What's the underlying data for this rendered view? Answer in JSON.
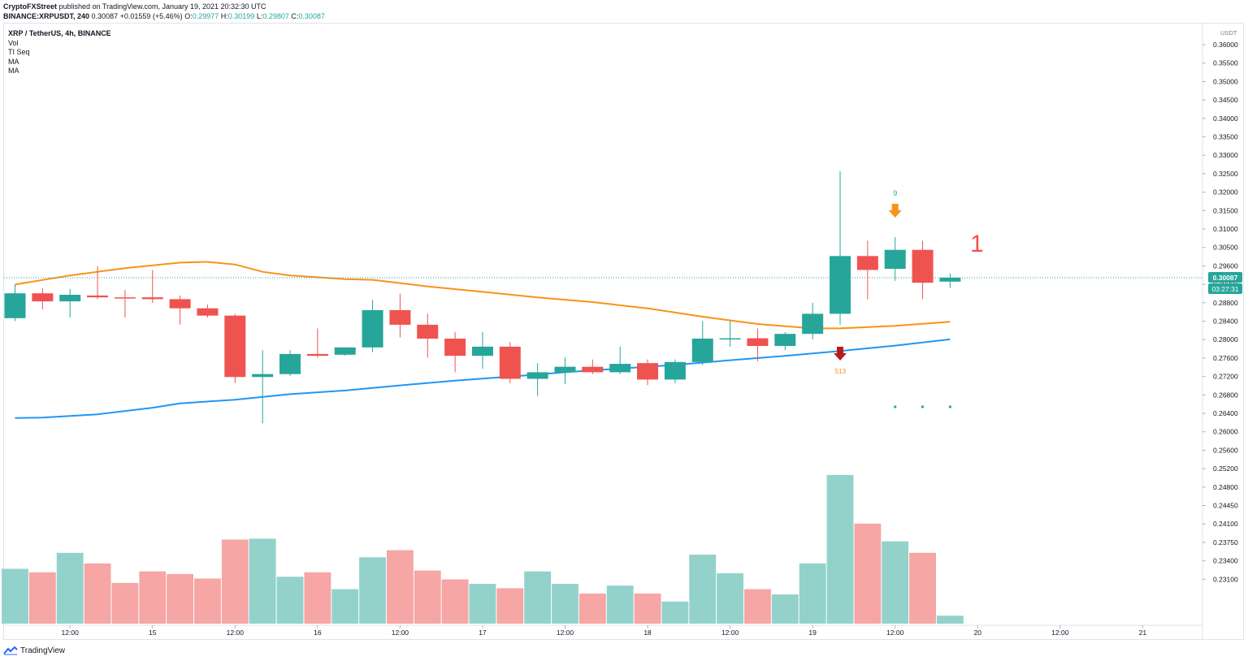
{
  "header": {
    "publisher": "CryptoFXStreet",
    "published_text": "published on TradingView.com, January 19, 2021 20:32:30 UTC",
    "symbol": "BINANCE:XRPUSDT, 240",
    "price": "0.30087",
    "change": "+0.01559 (+5.46%)",
    "o_label": "O:",
    "o": "0.29977",
    "h_label": "H:",
    "h": "0.30199",
    "l_label": "L:",
    "l": "0.29807",
    "c_label": "C:",
    "c": "0.30087"
  },
  "legend": {
    "title": "XRP / TetherUS, 4h, BINANCE",
    "items": [
      "Vol",
      "TI Seq",
      "MA",
      "MA"
    ]
  },
  "footer": {
    "brand": "TradingView"
  },
  "colors": {
    "up": "#26a69a",
    "down": "#ef5350",
    "vol_up": "#93d2cb",
    "vol_down": "#f5a6a5",
    "ma_orange": "#f7931a",
    "ma_blue": "#2196f3",
    "seq_green": "#26a69a",
    "arrow_orange": "#f7931a",
    "arrow_red": "#b71c1c"
  },
  "chart_data": {
    "type": "candlestick",
    "y_axis_unit": "USDT",
    "y_ticks": [
      "0.36000",
      "0.35500",
      "0.35000",
      "0.34500",
      "0.34000",
      "0.33500",
      "0.33000",
      "0.32500",
      "0.32000",
      "0.31500",
      "0.31000",
      "0.30500",
      "0.29600",
      "0.29200",
      "0.28800",
      "0.28400",
      "0.28000",
      "0.27600",
      "0.27200",
      "0.26800",
      "0.26400",
      "0.26000",
      "0.25600",
      "0.25200",
      "0.24800",
      "0.24450",
      "0.24100",
      "0.23750",
      "0.23400",
      "0.23100"
    ],
    "x_ticks": [
      {
        "label": "12:00",
        "bar": 2
      },
      {
        "label": "15",
        "bar": 5
      },
      {
        "label": "12:00",
        "bar": 8
      },
      {
        "label": "16",
        "bar": 11
      },
      {
        "label": "12:00",
        "bar": 14
      },
      {
        "label": "17",
        "bar": 17
      },
      {
        "label": "12:00",
        "bar": 20
      },
      {
        "label": "18",
        "bar": 23
      },
      {
        "label": "12:00",
        "bar": 26
      },
      {
        "label": "19",
        "bar": 29
      },
      {
        "label": "12:00",
        "bar": 32
      },
      {
        "label": "20",
        "bar": 35
      },
      {
        "label": "12:00",
        "bar": 38
      },
      {
        "label": "21",
        "bar": 41
      }
    ],
    "last_price_label": "0.30087",
    "countdown_label": "03:27:31",
    "candles": [
      {
        "o": 0.2898,
        "h": 0.299,
        "l": 0.289,
        "c": 0.2966
      },
      {
        "o": 0.2966,
        "h": 0.298,
        "l": 0.2922,
        "c": 0.2944
      },
      {
        "o": 0.2944,
        "h": 0.2978,
        "l": 0.29,
        "c": 0.2962
      },
      {
        "o": 0.296,
        "h": 0.304,
        "l": 0.295,
        "c": 0.2955
      },
      {
        "o": 0.2955,
        "h": 0.2975,
        "l": 0.29,
        "c": 0.2953
      },
      {
        "o": 0.2955,
        "h": 0.303,
        "l": 0.294,
        "c": 0.295
      },
      {
        "o": 0.295,
        "h": 0.296,
        "l": 0.288,
        "c": 0.2925
      },
      {
        "o": 0.2925,
        "h": 0.2935,
        "l": 0.29,
        "c": 0.2905
      },
      {
        "o": 0.2905,
        "h": 0.291,
        "l": 0.272,
        "c": 0.2737
      },
      {
        "o": 0.2737,
        "h": 0.281,
        "l": 0.261,
        "c": 0.2745
      },
      {
        "o": 0.2745,
        "h": 0.281,
        "l": 0.274,
        "c": 0.28
      },
      {
        "o": 0.28,
        "h": 0.287,
        "l": 0.279,
        "c": 0.2795
      },
      {
        "o": 0.2798,
        "h": 0.2815,
        "l": 0.2795,
        "c": 0.2818
      },
      {
        "o": 0.2818,
        "h": 0.2948,
        "l": 0.2805,
        "c": 0.292
      },
      {
        "o": 0.292,
        "h": 0.2965,
        "l": 0.2845,
        "c": 0.288
      },
      {
        "o": 0.288,
        "h": 0.291,
        "l": 0.279,
        "c": 0.2842
      },
      {
        "o": 0.2842,
        "h": 0.286,
        "l": 0.275,
        "c": 0.2795
      },
      {
        "o": 0.2795,
        "h": 0.286,
        "l": 0.276,
        "c": 0.282
      },
      {
        "o": 0.282,
        "h": 0.2833,
        "l": 0.272,
        "c": 0.2732
      },
      {
        "o": 0.2732,
        "h": 0.2775,
        "l": 0.2685,
        "c": 0.275
      },
      {
        "o": 0.275,
        "h": 0.279,
        "l": 0.2718,
        "c": 0.2765
      },
      {
        "o": 0.2765,
        "h": 0.2785,
        "l": 0.2745,
        "c": 0.275
      },
      {
        "o": 0.275,
        "h": 0.282,
        "l": 0.2745,
        "c": 0.2773
      },
      {
        "o": 0.2775,
        "h": 0.2785,
        "l": 0.2715,
        "c": 0.273
      },
      {
        "o": 0.273,
        "h": 0.2785,
        "l": 0.272,
        "c": 0.2778
      },
      {
        "o": 0.2778,
        "h": 0.289,
        "l": 0.277,
        "c": 0.2842
      },
      {
        "o": 0.2842,
        "h": 0.289,
        "l": 0.282,
        "c": 0.2843
      },
      {
        "o": 0.2843,
        "h": 0.287,
        "l": 0.278,
        "c": 0.2822
      },
      {
        "o": 0.2822,
        "h": 0.286,
        "l": 0.281,
        "c": 0.2855
      },
      {
        "o": 0.2855,
        "h": 0.294,
        "l": 0.284,
        "c": 0.291
      },
      {
        "o": 0.291,
        "h": 0.33,
        "l": 0.288,
        "c": 0.3068
      },
      {
        "o": 0.3068,
        "h": 0.311,
        "l": 0.295,
        "c": 0.303
      },
      {
        "o": 0.3033,
        "h": 0.312,
        "l": 0.3,
        "c": 0.3085
      },
      {
        "o": 0.3085,
        "h": 0.311,
        "l": 0.295,
        "c": 0.2995
      },
      {
        "o": 0.2998,
        "h": 0.302,
        "l": 0.298,
        "c": 0.3009
      }
    ],
    "volume": [
      {
        "v": 62,
        "up": true
      },
      {
        "v": 58,
        "up": false
      },
      {
        "v": 80,
        "up": true
      },
      {
        "v": 68,
        "up": false
      },
      {
        "v": 46,
        "up": false
      },
      {
        "v": 59,
        "up": false
      },
      {
        "v": 56,
        "up": false
      },
      {
        "v": 51,
        "up": false
      },
      {
        "v": 95,
        "up": false
      },
      {
        "v": 96,
        "up": true
      },
      {
        "v": 53,
        "up": true
      },
      {
        "v": 58,
        "up": false
      },
      {
        "v": 39,
        "up": true
      },
      {
        "v": 75,
        "up": true
      },
      {
        "v": 83,
        "up": false
      },
      {
        "v": 60,
        "up": false
      },
      {
        "v": 50,
        "up": false
      },
      {
        "v": 45,
        "up": true
      },
      {
        "v": 40,
        "up": false
      },
      {
        "v": 59,
        "up": true
      },
      {
        "v": 45,
        "up": true
      },
      {
        "v": 34,
        "up": false
      },
      {
        "v": 43,
        "up": true
      },
      {
        "v": 34,
        "up": false
      },
      {
        "v": 25,
        "up": true
      },
      {
        "v": 78,
        "up": true
      },
      {
        "v": 57,
        "up": true
      },
      {
        "v": 39,
        "up": false
      },
      {
        "v": 33,
        "up": true
      },
      {
        "v": 68,
        "up": true
      },
      {
        "v": 168,
        "up": true
      },
      {
        "v": 113,
        "up": false
      },
      {
        "v": 93,
        "up": true
      },
      {
        "v": 80,
        "up": false
      },
      {
        "v": 9,
        "up": true
      }
    ],
    "ma_orange": [
      {
        "bar": 0,
        "v": 0.299
      },
      {
        "bar": 2,
        "v": 0.3015
      },
      {
        "bar": 4,
        "v": 0.3035
      },
      {
        "bar": 6,
        "v": 0.305
      },
      {
        "bar": 7,
        "v": 0.3052
      },
      {
        "bar": 8,
        "v": 0.3045
      },
      {
        "bar": 9,
        "v": 0.3025
      },
      {
        "bar": 10,
        "v": 0.3015
      },
      {
        "bar": 12,
        "v": 0.3005
      },
      {
        "bar": 13,
        "v": 0.3003
      },
      {
        "bar": 15,
        "v": 0.2985
      },
      {
        "bar": 17,
        "v": 0.297
      },
      {
        "bar": 19,
        "v": 0.2955
      },
      {
        "bar": 21,
        "v": 0.2942
      },
      {
        "bar": 23,
        "v": 0.2925
      },
      {
        "bar": 25,
        "v": 0.2902
      },
      {
        "bar": 27,
        "v": 0.2882
      },
      {
        "bar": 29,
        "v": 0.287
      },
      {
        "bar": 30,
        "v": 0.287
      },
      {
        "bar": 32,
        "v": 0.2877
      },
      {
        "bar": 34,
        "v": 0.2888
      }
    ],
    "ma_blue": [
      {
        "bar": 0,
        "v": 0.2625
      },
      {
        "bar": 1,
        "v": 0.2626
      },
      {
        "bar": 3,
        "v": 0.2635
      },
      {
        "bar": 5,
        "v": 0.2653
      },
      {
        "bar": 6,
        "v": 0.2665
      },
      {
        "bar": 8,
        "v": 0.2675
      },
      {
        "bar": 10,
        "v": 0.269
      },
      {
        "bar": 12,
        "v": 0.27
      },
      {
        "bar": 14,
        "v": 0.2714
      },
      {
        "bar": 16,
        "v": 0.2727
      },
      {
        "bar": 18,
        "v": 0.2738
      },
      {
        "bar": 20,
        "v": 0.275
      },
      {
        "bar": 22,
        "v": 0.276
      },
      {
        "bar": 24,
        "v": 0.277
      },
      {
        "bar": 26,
        "v": 0.2783
      },
      {
        "bar": 28,
        "v": 0.2795
      },
      {
        "bar": 30,
        "v": 0.2808
      },
      {
        "bar": 32,
        "v": 0.2823
      },
      {
        "bar": 34,
        "v": 0.284
      }
    ],
    "annotations": {
      "seq_9_label": "9",
      "seq_9_bar": 32,
      "seq_1_label": "1",
      "seq_1_bar": 34,
      "bullet_bars": [
        32,
        33,
        34
      ],
      "down_arrow_bar": 30,
      "down_arrow_label": "S13"
    }
  }
}
